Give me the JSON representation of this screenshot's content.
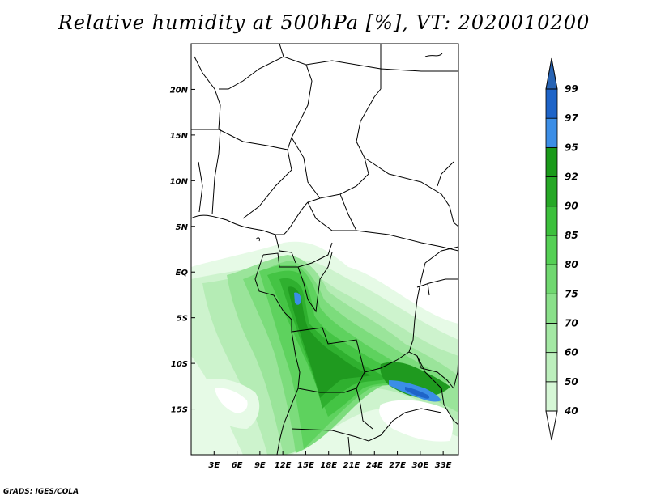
{
  "title": "Relative humidity at 500hPa [%], VT: 2020010200",
  "credit": "GrADS: IGES/COLA",
  "map": {
    "projection": "latlon",
    "lon_range": [
      0,
      35
    ],
    "lat_range": [
      -20,
      25
    ],
    "lat_ticks": [
      {
        "value": 20,
        "label": "20N"
      },
      {
        "value": 15,
        "label": "15N"
      },
      {
        "value": 10,
        "label": "10N"
      },
      {
        "value": 5,
        "label": "5N"
      },
      {
        "value": 0,
        "label": "EQ"
      },
      {
        "value": -5,
        "label": "5S"
      },
      {
        "value": -10,
        "label": "10S"
      },
      {
        "value": -15,
        "label": "15S"
      }
    ],
    "lon_ticks": [
      {
        "value": 3,
        "label": "3E"
      },
      {
        "value": 6,
        "label": "6E"
      },
      {
        "value": 9,
        "label": "9E"
      },
      {
        "value": 12,
        "label": "12E"
      },
      {
        "value": 15,
        "label": "15E"
      },
      {
        "value": 18,
        "label": "18E"
      },
      {
        "value": 21,
        "label": "21E"
      },
      {
        "value": 24,
        "label": "24E"
      },
      {
        "value": 27,
        "label": "27E"
      },
      {
        "value": 30,
        "label": "30E"
      },
      {
        "value": 33,
        "label": "33E"
      }
    ],
    "field": "relative humidity at 500hPa (%)",
    "valid_time": "2020010200"
  },
  "colorbar": {
    "orientation": "vertical",
    "extend": "both",
    "levels": [
      {
        "label": "40",
        "color": "#f0fff0"
      },
      {
        "label": "50",
        "color": "#d6f7d6"
      },
      {
        "label": "60",
        "color": "#bdefbd"
      },
      {
        "label": "70",
        "color": "#a4e8a4"
      },
      {
        "label": "75",
        "color": "#8ae08a"
      },
      {
        "label": "80",
        "color": "#70d870"
      },
      {
        "label": "85",
        "color": "#55d055"
      },
      {
        "label": "90",
        "color": "#3cc03c"
      },
      {
        "label": "92",
        "color": "#26a826"
      },
      {
        "label": "95",
        "color": "#1a9a1a"
      },
      {
        "label": "97",
        "color": "#3c8ee6"
      },
      {
        "label": "99",
        "color": "#1e64c8"
      }
    ],
    "bottom_tri_color": "#ffffff",
    "top_tri_color": "#2864b4",
    "top_segment_color": "#4aa0f0"
  }
}
